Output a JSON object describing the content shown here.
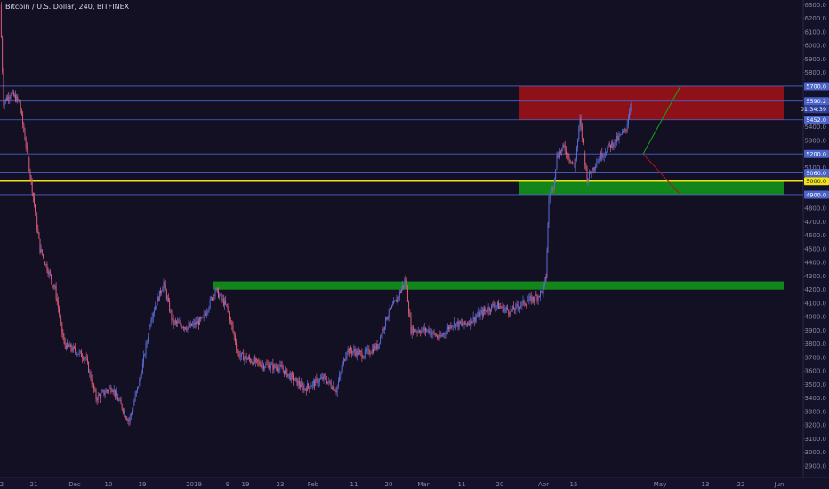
{
  "header": {
    "title": "Bitcoin / U.S. Dollar, 240, BITFINEX"
  },
  "colors": {
    "background": "#131024",
    "axis_bg": "#14112a",
    "candle_up": "#5b6fd8",
    "candle_down": "#e2607a",
    "level_line": "#4a63c8",
    "highlight_line": "#f0e21a",
    "resistance_zone": "#8e1119",
    "support_zone": "#12861a",
    "bull_path": "#1aa31a",
    "bear_path": "#b1141f"
  },
  "chart_data": {
    "type": "candlestick",
    "title": "Bitcoin / U.S. Dollar, 240, BITFINEX",
    "y_ticks": [
      "6300.0",
      "6200.0",
      "6100.0",
      "6000.0",
      "5900.0",
      "5800.0",
      "5400.0",
      "5300.0",
      "5100.0",
      "4800.0",
      "4700.0",
      "4600.0",
      "4500.0",
      "4400.0",
      "4300.0",
      "4200.0",
      "4100.0",
      "4000.0",
      "3900.0",
      "3800.0",
      "3700.0",
      "3600.0",
      "3500.0",
      "3400.0",
      "3300.0",
      "3200.0",
      "3100.0",
      "3000.0",
      "2900.0",
      "2800.0"
    ],
    "ylim": [
      2800,
      6350
    ],
    "x_ticks": [
      "2",
      "21",
      "Dec",
      "10",
      "19",
      "2019",
      "9",
      "19",
      "23",
      "Feb",
      "11",
      "20",
      "Mar",
      "11",
      "20",
      "Apr",
      "15",
      "May",
      "13",
      "22",
      "Jun"
    ],
    "price_levels": [
      "5700.0",
      "5590.2",
      "5452.0",
      "5200.0",
      "5060.0",
      "5000.0",
      "4900.0"
    ],
    "highlighted_level": "5000.0",
    "countdown": "01:34:39",
    "zones": [
      {
        "type": "resistance",
        "from": 5452,
        "to": 5700
      },
      {
        "type": "support",
        "from": 4900,
        "to": 5000
      },
      {
        "type": "support",
        "from": 4200,
        "to": 4260
      }
    ],
    "projections": [
      {
        "type": "bull",
        "from": 5200,
        "to": 5700
      },
      {
        "type": "bear",
        "from": 5200,
        "to": 4900
      }
    ],
    "price_path": [
      [
        0,
        6300
      ],
      [
        4,
        5580
      ],
      [
        12,
        5650
      ],
      [
        22,
        5580
      ],
      [
        34,
        5050
      ],
      [
        45,
        4500
      ],
      [
        62,
        4200
      ],
      [
        72,
        3800
      ],
      [
        96,
        3700
      ],
      [
        108,
        3400
      ],
      [
        126,
        3480
      ],
      [
        145,
        3230
      ],
      [
        158,
        3560
      ],
      [
        170,
        4000
      ],
      [
        184,
        4250
      ],
      [
        194,
        3960
      ],
      [
        212,
        3920
      ],
      [
        228,
        3980
      ],
      [
        242,
        4200
      ],
      [
        256,
        4060
      ],
      [
        268,
        3720
      ],
      [
        292,
        3650
      ],
      [
        316,
        3620
      ],
      [
        342,
        3470
      ],
      [
        364,
        3550
      ],
      [
        378,
        3460
      ],
      [
        390,
        3760
      ],
      [
        408,
        3720
      ],
      [
        424,
        3780
      ],
      [
        436,
        4020
      ],
      [
        446,
        4120
      ],
      [
        456,
        4280
      ],
      [
        462,
        3900
      ],
      [
        482,
        3900
      ],
      [
        494,
        3840
      ],
      [
        508,
        3950
      ],
      [
        522,
        3940
      ],
      [
        540,
        4020
      ],
      [
        556,
        4090
      ],
      [
        574,
        4040
      ],
      [
        588,
        4100
      ],
      [
        604,
        4150
      ],
      [
        611,
        4200
      ],
      [
        614,
        4300
      ],
      [
        617,
        4870
      ],
      [
        622,
        4970
      ],
      [
        626,
        5180
      ],
      [
        634,
        5250
      ],
      [
        646,
        5100
      ],
      [
        652,
        5450
      ],
      [
        660,
        5020
      ],
      [
        672,
        5160
      ],
      [
        684,
        5250
      ],
      [
        696,
        5320
      ],
      [
        704,
        5390
      ],
      [
        710,
        5600
      ]
    ]
  }
}
